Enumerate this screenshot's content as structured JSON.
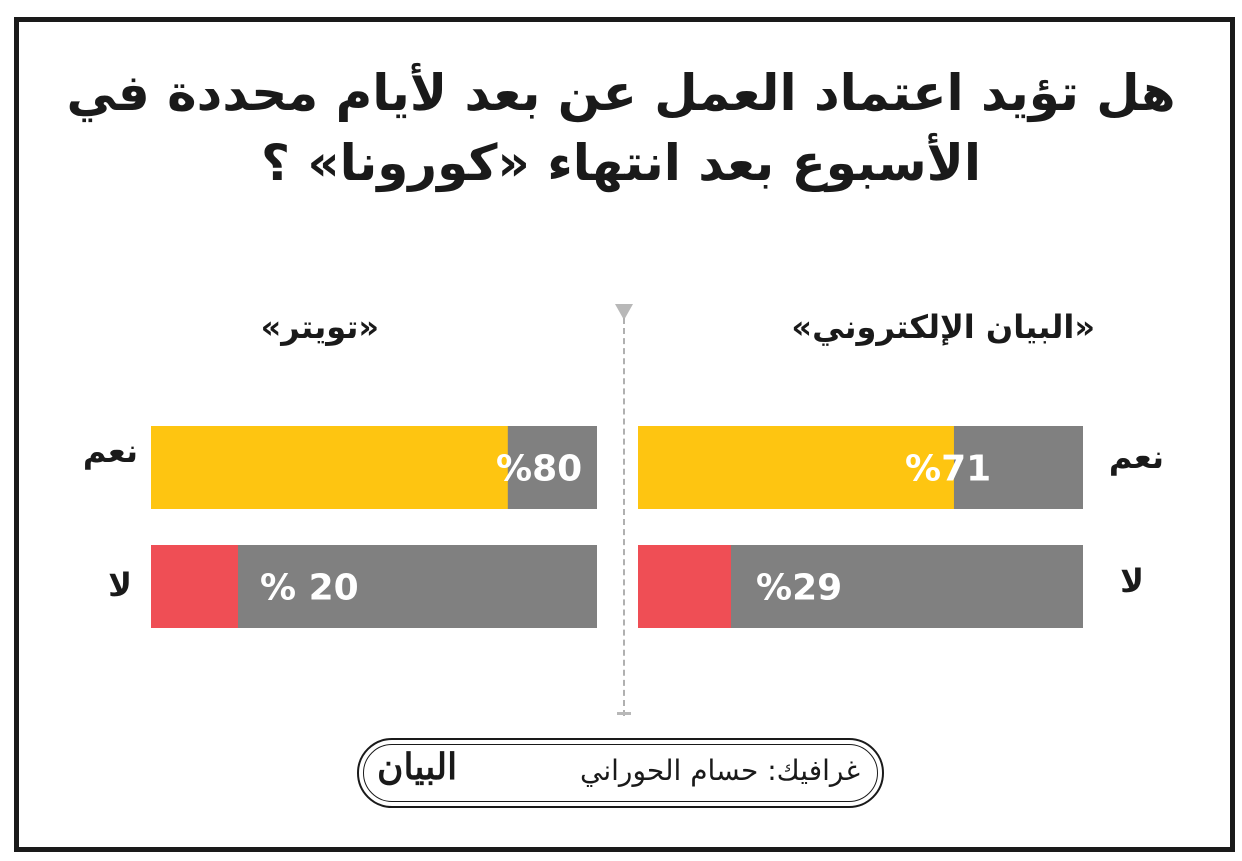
{
  "title": {
    "line1": "هل تؤيد اعتماد العمل عن بعد لأيام محددة في",
    "line2": "الأسبوع بعد انتهاء «كورونا» ؟"
  },
  "colors": {
    "yes": "#fec511",
    "no": "#ef4e55",
    "track": "#808080",
    "value_text": "#ffffff"
  },
  "chart_data": [
    {
      "type": "bar",
      "title": "«البيان الإلكتروني»",
      "categories": [
        "نعم",
        "لا"
      ],
      "values": [
        71,
        29
      ],
      "value_labels": [
        "%71",
        "%29"
      ],
      "ylim": [
        0,
        100
      ]
    },
    {
      "type": "bar",
      "title": "«تويتر»",
      "categories": [
        "نعم",
        "لا"
      ],
      "values": [
        80,
        20
      ],
      "value_labels": [
        "%80",
        "% 20"
      ],
      "ylim": [
        0,
        100
      ]
    }
  ],
  "footer": {
    "credit": "غرافيك: حسام الحوراني",
    "logo": "البيان"
  }
}
